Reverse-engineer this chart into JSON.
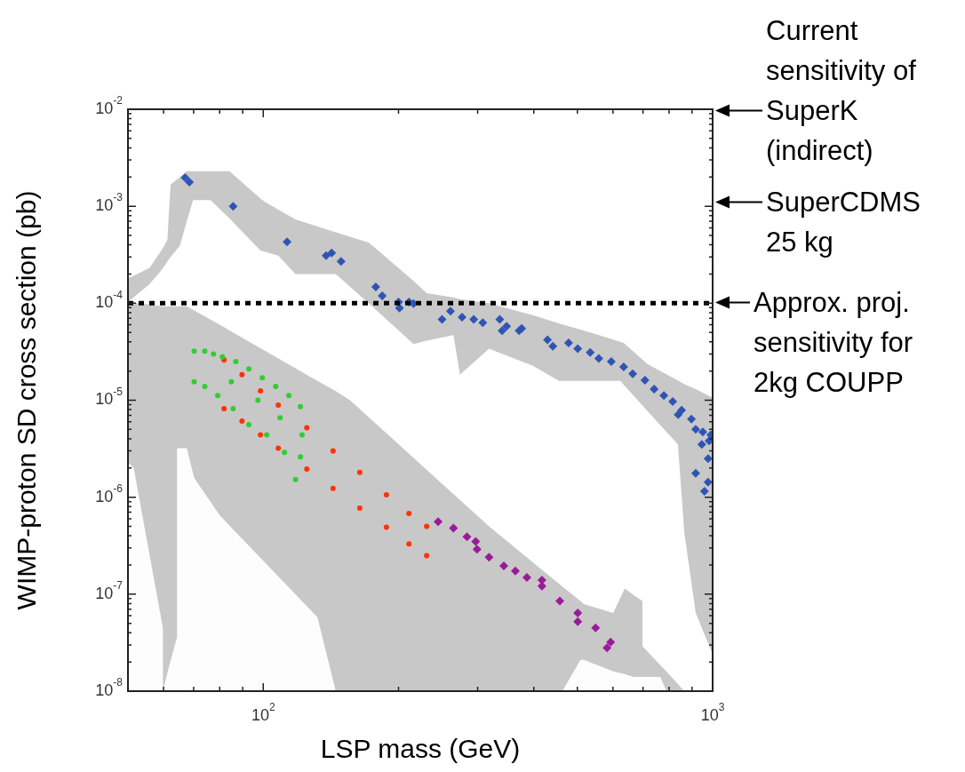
{
  "chart_data": {
    "type": "scatter",
    "xlabel": "LSP mass (GeV)",
    "ylabel": "WIMP-proton SD cross section (pb)",
    "log": "xy",
    "grid": false,
    "legend": false,
    "xlim": [
      50,
      1000
    ],
    "ylim": [
      1e-08,
      0.01
    ],
    "xticks": [
      {
        "value": 60,
        "label": null
      },
      {
        "value": 70,
        "label": null
      },
      {
        "value": 80,
        "label": null
      },
      {
        "value": 90,
        "label": null
      },
      {
        "value": 100,
        "label": "10$^{2}$"
      },
      {
        "value": 200,
        "label": null
      },
      {
        "value": 300,
        "label": null
      },
      {
        "value": 400,
        "label": null
      },
      {
        "value": 500,
        "label": null
      },
      {
        "value": 600,
        "label": null
      },
      {
        "value": 700,
        "label": null
      },
      {
        "value": 800,
        "label": null
      },
      {
        "value": 900,
        "label": null
      },
      {
        "value": 1000,
        "label": "10$^{3}$"
      }
    ],
    "yticks": [
      {
        "value": 1e-08,
        "label": "10$^{-8}$"
      },
      {
        "value": 2e-08,
        "label": null
      },
      {
        "value": 3e-08,
        "label": null
      },
      {
        "value": 4e-08,
        "label": null
      },
      {
        "value": 5e-08,
        "label": null
      },
      {
        "value": 6e-08,
        "label": null
      },
      {
        "value": 7e-08,
        "label": null
      },
      {
        "value": 8e-08,
        "label": null
      },
      {
        "value": 9e-08,
        "label": null
      },
      {
        "value": 1e-07,
        "label": "10$^{-7}$"
      },
      {
        "value": 2e-07,
        "label": null
      },
      {
        "value": 3e-07,
        "label": null
      },
      {
        "value": 4e-07,
        "label": null
      },
      {
        "value": 5e-07,
        "label": null
      },
      {
        "value": 6e-07,
        "label": null
      },
      {
        "value": 7e-07,
        "label": null
      },
      {
        "value": 8e-07,
        "label": null
      },
      {
        "value": 9e-07,
        "label": null
      },
      {
        "value": 1e-06,
        "label": "10$^{-6}$"
      },
      {
        "value": 2e-06,
        "label": null
      },
      {
        "value": 3e-06,
        "label": null
      },
      {
        "value": 4e-06,
        "label": null
      },
      {
        "value": 5e-06,
        "label": null
      },
      {
        "value": 6e-06,
        "label": null
      },
      {
        "value": 7e-06,
        "label": null
      },
      {
        "value": 8e-06,
        "label": null
      },
      {
        "value": 9e-06,
        "label": null
      },
      {
        "value": 1e-05,
        "label": "10$^{-5}$"
      },
      {
        "value": 2e-05,
        "label": null
      },
      {
        "value": 3e-05,
        "label": null
      },
      {
        "value": 4e-05,
        "label": null
      },
      {
        "value": 5e-05,
        "label": null
      },
      {
        "value": 6e-05,
        "label": null
      },
      {
        "value": 7e-05,
        "label": null
      },
      {
        "value": 8e-05,
        "label": null
      },
      {
        "value": 9e-05,
        "label": null
      },
      {
        "value": 0.0001,
        "label": "10$^{-4}$"
      },
      {
        "value": 0.0002,
        "label": null
      },
      {
        "value": 0.0003,
        "label": null
      },
      {
        "value": 0.0004,
        "label": null
      },
      {
        "value": 0.0005,
        "label": null
      },
      {
        "value": 0.0006,
        "label": null
      },
      {
        "value": 0.0007,
        "label": null
      },
      {
        "value": 0.0008,
        "label": null
      },
      {
        "value": 0.0009,
        "label": null
      },
      {
        "value": 0.001,
        "label": "10$^{-3}$"
      },
      {
        "value": 0.002,
        "label": null
      },
      {
        "value": 0.003,
        "label": null
      },
      {
        "value": 0.004,
        "label": null
      },
      {
        "value": 0.005,
        "label": null
      },
      {
        "value": 0.006,
        "label": null
      },
      {
        "value": 0.007,
        "label": null
      },
      {
        "value": 0.008,
        "label": null
      },
      {
        "value": 0.009,
        "label": null
      },
      {
        "value": 0.01,
        "label": "10$^{-2}$"
      }
    ],
    "series": [
      {
        "type": "area",
        "color": "#c8c8c8",
        "x": [
          50,
          55.8,
          59.6,
          61.2,
          62.2,
          65.2,
          67.6,
          69.8,
          76.4,
          84.1,
          98.6,
          100.5,
          108,
          118,
          145,
          172,
          216,
          231,
          265,
          274,
          318,
          399,
          455,
          551,
          623,
          634,
          717,
          837,
          865,
          917,
          1000
        ],
        "values": [
          0.00018,
          0.00023,
          0.00036,
          0.00045,
          0.00167,
          0.002,
          0.0023,
          0.0023,
          0.0023,
          0.0023,
          0.0012,
          0.00112,
          0.00092,
          0.00073,
          0.00054,
          0.00042,
          0.00017,
          0.000127,
          0.000115,
          0.00011,
          0.0001,
          7.5e-05,
          6.2e-05,
          4.8e-05,
          4e-05,
          3.9e-05,
          2.35e-05,
          1.6e-05,
          1.46e-05,
          1.3e-05,
          1.06e-05
        ]
      },
      {
        "type": "area",
        "color": "#ffffff",
        "x": [
          50,
          55.8,
          59.6,
          61.2,
          62.2,
          65.2,
          67.6,
          69.8,
          76.4,
          84.1,
          98.6,
          100.5,
          108,
          118,
          145,
          172,
          216,
          231,
          265,
          274,
          318,
          399,
          455,
          551,
          623,
          634,
          717,
          837,
          865,
          917,
          1000
        ],
        "values": [
          0.000103,
          0.000157,
          0.000225,
          0.00027,
          0.0003,
          0.00039,
          0.0007,
          0.00116,
          0.00116,
          0.00075,
          0.00035,
          0.00034,
          0.00031,
          0.0002,
          0.0002,
          9.9e-05,
          3.8e-05,
          4.1e-05,
          4.7e-05,
          1.83e-05,
          3.4e-05,
          2.25e-05,
          1.58e-05,
          1.58e-05,
          1.58e-05,
          1.45e-05,
          7.7e-06,
          3.5e-06,
          4.3e-07,
          6.4e-08,
          2.4e-08
        ]
      },
      {
        "type": "area",
        "color": "#c8c8c8",
        "x": [
          50,
          59.8,
          64.3,
          67.6,
          70.2,
          80,
          132,
          145,
          156,
          318,
          463,
          508,
          517,
          601,
          637,
          667,
          698,
          698,
          765,
          789,
          865
        ],
        "values": [
          0.000103,
          9.3e-05,
          9.3e-05,
          9.3e-05,
          8.4e-05,
          6e-05,
          1.58e-05,
          1.24e-05,
          1e-05,
          5e-07,
          1.2e-07,
          8.5e-08,
          7.9e-08,
          6.4e-08,
          1.14e-07,
          9.8e-08,
          8.5e-08,
          2.9e-08,
          1.85e-08,
          1.6e-08,
          1e-08
        ]
      },
      {
        "type": "area",
        "color": "#fdfdfd",
        "x": [
          50,
          51.5,
          59.8,
          59.8,
          61.7,
          64.3,
          64.3,
          67.6,
          70.2,
          80,
          132,
          145,
          463,
          508,
          517,
          601,
          637,
          667,
          698,
          765,
          789
        ],
        "values": [
          2.3e-06,
          2e-06,
          4.5e-08,
          1e-08,
          1.8e-08,
          3.6e-08,
          3.2e-06,
          3.2e-06,
          1.58e-06,
          6.5e-07,
          5.8e-08,
          1e-08,
          1e-08,
          2.1e-08,
          2.1e-08,
          1.6e-08,
          1.5e-08,
          1.4e-08,
          1.4e-08,
          1.4e-08,
          1e-08
        ]
      },
      {
        "color": "#33cc33",
        "marker": "circle",
        "x": [
          70.2,
          70.2,
          74.1,
          77.5,
          81.1,
          86.9,
          92.9,
          99.5,
          106.6,
          114,
          121,
          122,
          121,
          118,
          111.5,
          101.8,
          92.9,
          85.7,
          79.2,
          74.1,
          84.9,
          97.3,
          109
        ],
        "values": [
          3.2e-05,
          1.55e-05,
          3.2e-05,
          3e-05,
          2.8e-05,
          2.5e-05,
          2.1e-05,
          1.7e-05,
          1.39e-05,
          1.12e-05,
          8.6e-06,
          4.4e-06,
          2.6e-06,
          1.52e-06,
          2.9e-06,
          4.4e-06,
          5.6e-06,
          8.2e-06,
          1.12e-05,
          1.39e-05,
          1.55e-05,
          1e-05,
          6.6e-06
        ]
      },
      {
        "color": "#ff3300",
        "marker": "circle",
        "x": [
          81.8,
          81.8,
          89.7,
          89.7,
          98.6,
          98.6,
          108,
          108,
          125,
          125,
          143,
          143,
          164,
          164,
          188,
          188,
          211,
          211,
          231,
          231
        ],
        "values": [
          2.6e-05,
          8.2e-06,
          1.83e-05,
          6.1e-06,
          1.25e-05,
          4.4e-06,
          8.9e-06,
          3.2e-06,
          5.2e-06,
          1.95e-06,
          3e-06,
          1.23e-06,
          1.8e-06,
          7.7e-07,
          1.06e-06,
          4.9e-07,
          6.8e-07,
          3.3e-07,
          5e-07,
          2.5e-07
        ]
      },
      {
        "color": "#9a1a9a",
        "marker": "diamond",
        "x": [
          245,
          265,
          284,
          297,
          299,
          318,
          343,
          364,
          386,
          417,
          417,
          457,
          501,
          501,
          549,
          593,
          582
        ],
        "values": [
          5.6e-07,
          4.8e-07,
          3.9e-07,
          3.5e-07,
          2.9e-07,
          2.4e-07,
          1.96e-07,
          1.73e-07,
          1.49e-07,
          1.4e-07,
          1.21e-07,
          8.5e-08,
          6.4e-08,
          5.2e-08,
          4.5e-08,
          3.2e-08,
          2.8e-08
        ]
      },
      {
        "color": "#2f55b4",
        "marker": "diamond",
        "x": [
          67,
          68.5,
          85.7,
          113,
          138,
          142,
          149,
          178,
          184,
          200,
          201,
          211,
          216,
          250,
          261,
          277,
          294,
          308,
          336,
          340,
          348,
          376,
          371,
          429,
          441,
          478,
          501,
          534,
          558,
          595,
          634,
          664,
          707,
          741,
          779,
          815,
          853,
          897,
          838,
          951,
          917,
          991,
          982,
          946,
          977,
          917,
          977,
          959
        ],
        "values": [
          0.00197,
          0.00177,
          0.001,
          0.00043,
          0.00031,
          0.00033,
          0.00027,
          0.000147,
          0.000119,
          0.000103,
          8.9e-05,
          0.000103,
          9.9e-05,
          6.8e-05,
          8.3e-05,
          7.2e-05,
          6.8e-05,
          6.3e-05,
          6.8e-05,
          5.2e-05,
          5.8e-05,
          5.5e-05,
          5.2e-05,
          4.2e-05,
          3.6e-05,
          3.9e-05,
          3.4e-05,
          3.1e-05,
          2.7e-05,
          2.5e-05,
          2.2e-05,
          1.87e-05,
          1.61e-05,
          1.3e-05,
          1.12e-05,
          9.7e-06,
          7.9e-06,
          6.4e-06,
          7.1e-06,
          4.7e-06,
          5e-06,
          4.4e-06,
          3.8e-06,
          3.5e-06,
          2.5e-06,
          1.76e-06,
          1.43e-06,
          1.15e-06
        ]
      }
    ],
    "ref_lines": [
      {
        "axis": "y",
        "value": 0.0001,
        "color": "#000000",
        "line_style": "dotted"
      }
    ],
    "annotations": [
      "Current sensitivity of SuperK (indirect)",
      "SuperCDMS 25 kg",
      "Approx. proj. sensitivity for 2kg COUPP"
    ]
  }
}
